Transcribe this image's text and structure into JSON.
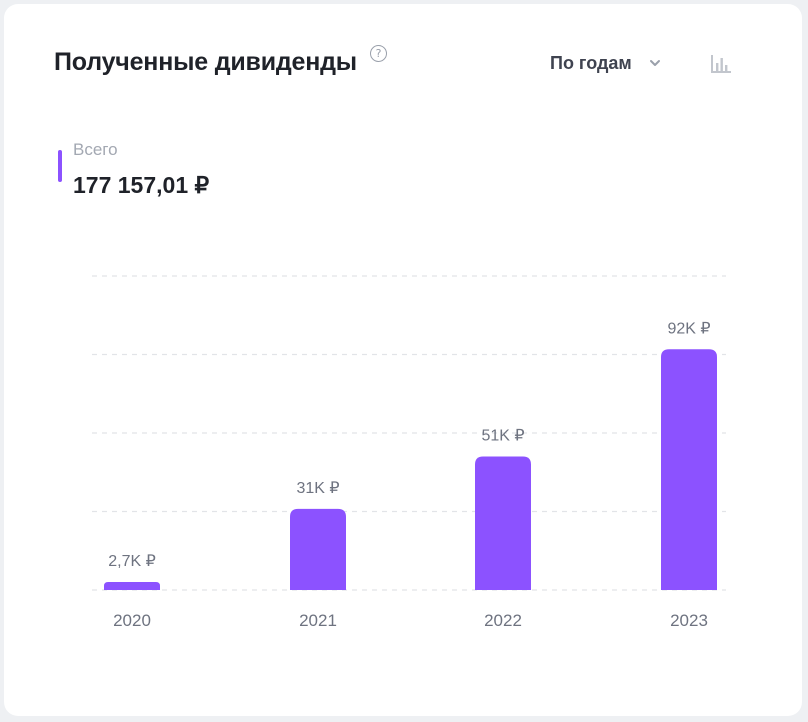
{
  "header": {
    "title": "Полученные дивиденды",
    "help_glyph": "?"
  },
  "controls": {
    "period_label": "По годам",
    "chevron_icon": "chevron-down-icon",
    "chart_type_icon": "bar-chart-icon"
  },
  "summary": {
    "caption": "Всего",
    "total": "177 157,01 ₽"
  },
  "colors": {
    "accent": "#8c52ff",
    "text_primary": "#1f2229",
    "text_muted": "#6e7380",
    "gridline": "#e2e4e8"
  },
  "chart_data": {
    "type": "bar",
    "title": "",
    "xlabel": "",
    "ylabel": "",
    "categories": [
      "2020",
      "2021",
      "2022",
      "2023"
    ],
    "values": [
      2700,
      31000,
      51000,
      92000
    ],
    "value_labels": [
      "2,7K ₽",
      "31K ₽",
      "51K ₽",
      "92K ₽"
    ],
    "ylim": [
      0,
      120000
    ],
    "grid": true,
    "legend": "none"
  }
}
